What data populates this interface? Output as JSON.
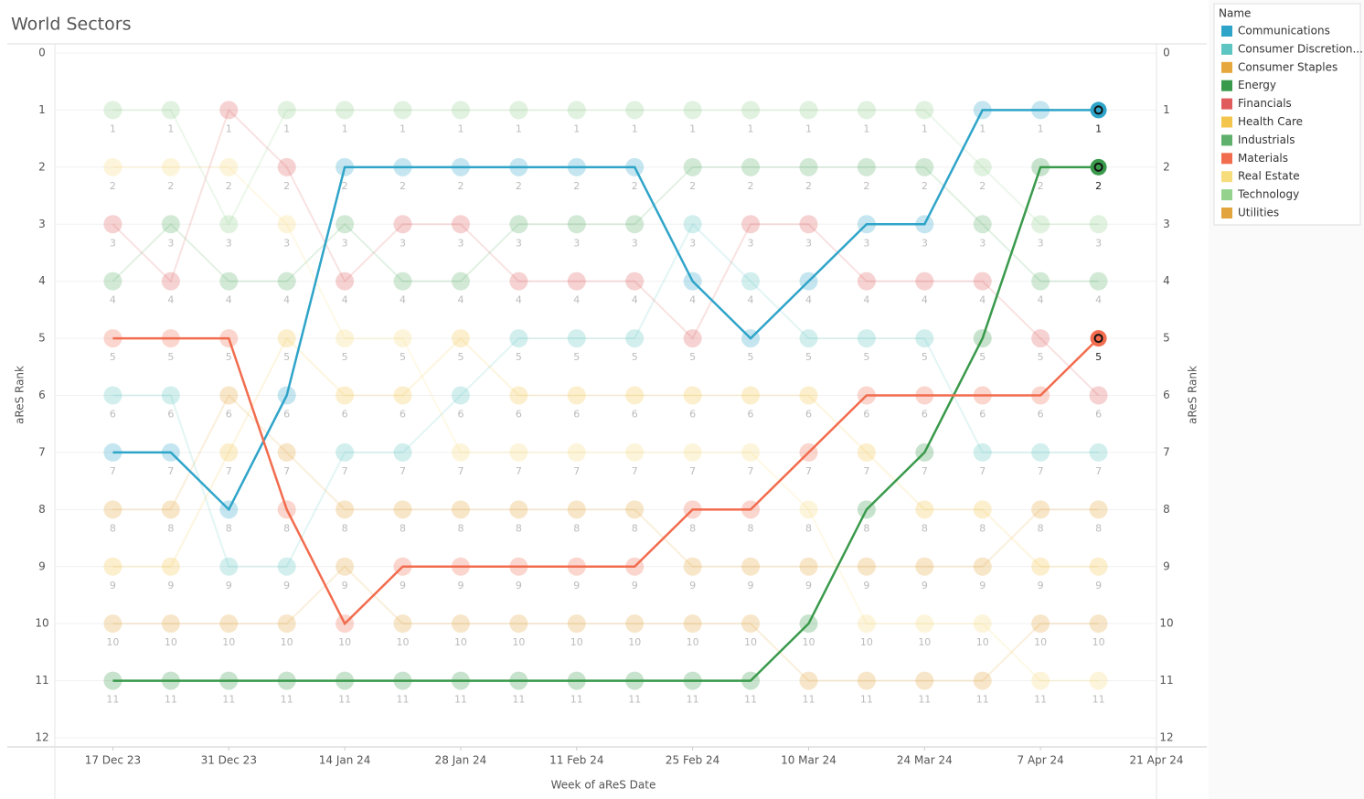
{
  "chart_data": {
    "type": "bump",
    "title": "World Sectors",
    "x_label": "Week of aReS Date",
    "y_label": "aReS Rank",
    "legend_title": "Name",
    "legend": "right",
    "reverse_y": true,
    "highlight": [
      "Communications",
      "Energy",
      "Materials"
    ],
    "x": [
      "2023-12-17",
      "2023-12-24",
      "2023-12-31",
      "2024-01-07",
      "2024-01-14",
      "2024-01-21",
      "2024-01-28",
      "2024-02-04",
      "2024-02-11",
      "2024-02-18",
      "2024-02-25",
      "2024-03-03",
      "2024-03-10",
      "2024-03-17",
      "2024-03-24",
      "2024-03-31",
      "2024-04-07",
      "2024-04-14"
    ],
    "xlim": [
      "2023-12-10",
      "2024-04-21"
    ],
    "xticks": [
      {
        "value": "2023-12-17",
        "label": "17 Dec 23"
      },
      {
        "value": "2023-12-31",
        "label": "31 Dec 23"
      },
      {
        "value": "2024-01-14",
        "label": "14 Jan 24"
      },
      {
        "value": "2024-01-28",
        "label": "28 Jan 24"
      },
      {
        "value": "2024-02-11",
        "label": "11 Feb 24"
      },
      {
        "value": "2024-02-25",
        "label": "25 Feb 24"
      },
      {
        "value": "2024-03-10",
        "label": "10 Mar 24"
      },
      {
        "value": "2024-03-24",
        "label": "24 Mar 24"
      },
      {
        "value": "2024-04-07",
        "label": "7 Apr 24"
      },
      {
        "value": "2024-04-21",
        "label": "21 Apr 24"
      }
    ],
    "ylim": [
      0,
      12
    ],
    "yticks": [
      0,
      1,
      2,
      3,
      4,
      5,
      6,
      7,
      8,
      9,
      10,
      11,
      12
    ],
    "series": [
      {
        "name": "Communications",
        "color": "#2fa4c9",
        "values": [
          7,
          7,
          8,
          6,
          2,
          2,
          2,
          2,
          2,
          2,
          4,
          5,
          4,
          3,
          3,
          1,
          1,
          1
        ]
      },
      {
        "name": "Consumer Discretion...",
        "color": "#5ec6c2",
        "values": [
          6,
          6,
          9,
          9,
          7,
          7,
          6,
          5,
          5,
          5,
          3,
          4,
          5,
          5,
          5,
          7,
          7,
          7
        ]
      },
      {
        "name": "Consumer Staples",
        "color": "#e6a73c",
        "values": [
          8,
          8,
          6,
          7,
          8,
          8,
          8,
          8,
          8,
          8,
          9,
          9,
          9,
          9,
          9,
          9,
          8,
          8
        ]
      },
      {
        "name": "Energy",
        "color": "#3a9a4c",
        "values": [
          11,
          11,
          11,
          11,
          11,
          11,
          11,
          11,
          11,
          11,
          11,
          11,
          10,
          8,
          7,
          5,
          2,
          2
        ]
      },
      {
        "name": "Financials",
        "color": "#e05c5c",
        "values": [
          3,
          4,
          1,
          2,
          4,
          3,
          3,
          4,
          4,
          4,
          5,
          3,
          3,
          4,
          4,
          4,
          5,
          6
        ]
      },
      {
        "name": "Health Care",
        "color": "#f3c54c",
        "values": [
          9,
          9,
          7,
          5,
          6,
          6,
          5,
          6,
          6,
          6,
          6,
          6,
          6,
          7,
          8,
          8,
          9,
          9
        ]
      },
      {
        "name": "Industrials",
        "color": "#5fb06c",
        "values": [
          4,
          3,
          4,
          4,
          3,
          4,
          4,
          3,
          3,
          3,
          2,
          2,
          2,
          2,
          2,
          3,
          4,
          4
        ]
      },
      {
        "name": "Materials",
        "color": "#f26c4e",
        "values": [
          5,
          5,
          5,
          8,
          10,
          9,
          9,
          9,
          9,
          9,
          8,
          8,
          7,
          6,
          6,
          6,
          6,
          5
        ]
      },
      {
        "name": "Real Estate",
        "color": "#f7dc7c",
        "values": [
          2,
          2,
          2,
          3,
          5,
          5,
          7,
          7,
          7,
          7,
          7,
          7,
          8,
          10,
          10,
          10,
          11,
          11
        ]
      },
      {
        "name": "Technology",
        "color": "#94d28e",
        "values": [
          1,
          1,
          3,
          1,
          1,
          1,
          1,
          1,
          1,
          1,
          1,
          1,
          1,
          1,
          1,
          2,
          3,
          3
        ]
      },
      {
        "name": "Utilities",
        "color": "#e2a43c",
        "values": [
          10,
          10,
          10,
          10,
          9,
          10,
          10,
          10,
          10,
          10,
          10,
          10,
          11,
          11,
          11,
          11,
          10,
          10
        ]
      }
    ]
  }
}
